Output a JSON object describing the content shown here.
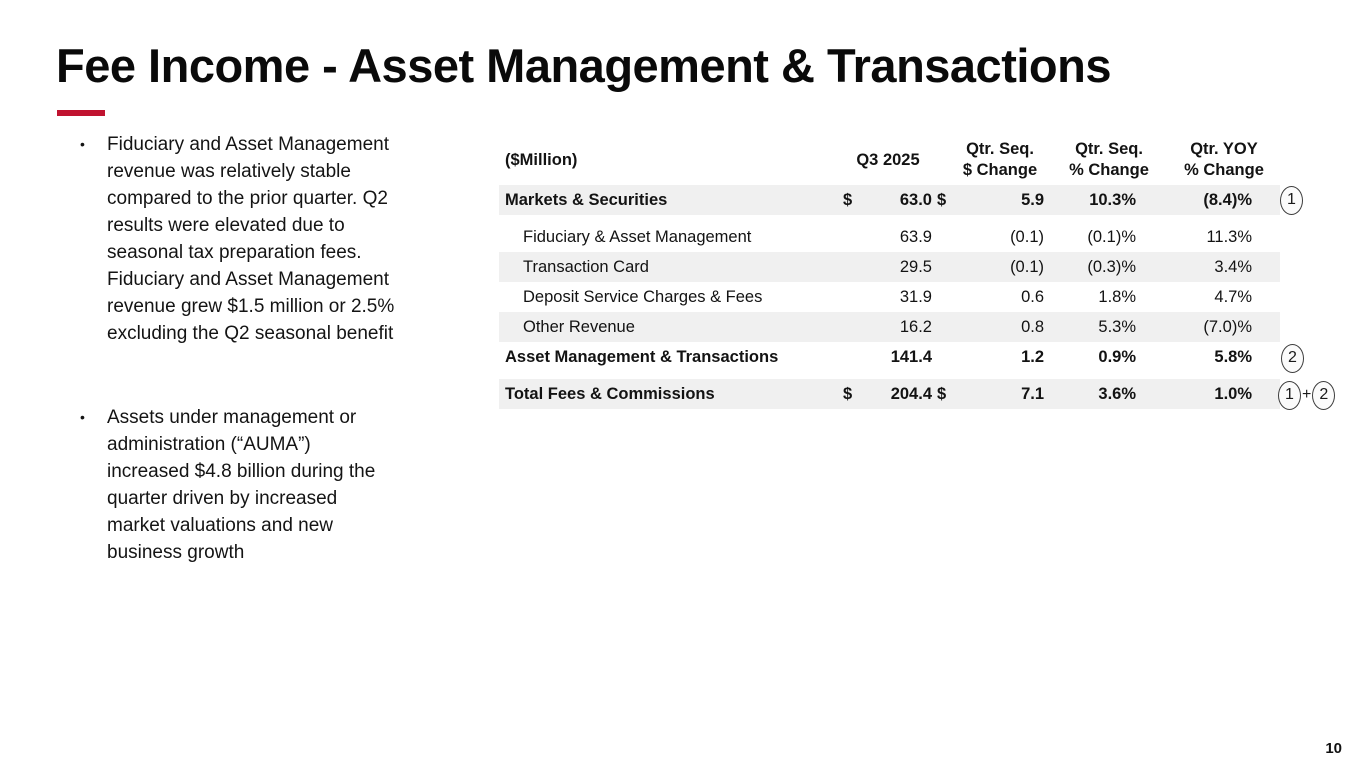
{
  "slide": {
    "title": "Fee Income - Asset Management & Transactions",
    "accent_color": "#c01330",
    "page_number": "10"
  },
  "bullets": [
    {
      "text": "Fiduciary and Asset Management\nrevenue was relatively stable\ncompared to the prior quarter. Q2\nresults were elevated due to\nseasonal tax preparation fees.\nFiduciary and Asset Management\nrevenue grew $1.5 million or 2.5%\nexcluding the Q2 seasonal benefit"
    },
    {
      "text": "Assets under management or\nadministration (“AUMA”)\nincreased $4.8 billion during the\nquarter driven by increased\nmarket valuations and new\nbusiness growth"
    }
  ],
  "table": {
    "unit_label": "($Million)",
    "headers": {
      "q3": "Q3 2025",
      "seq_dollar": "Qtr. Seq.\n$ Change",
      "seq_pct": "Qtr. Seq.\n% Change",
      "yoy_pct": "Qtr. YOY\n% Change"
    },
    "rows": [
      {
        "label": "Markets & Securities",
        "d1": "$",
        "q3": "63.0",
        "d2": "$",
        "chg": "5.9",
        "pct": "10.3%",
        "yoy": "(8.4)%"
      },
      {
        "label": "Fiduciary & Asset Management",
        "d1": "",
        "q3": "63.9",
        "d2": "",
        "chg": "(0.1)",
        "pct": "(0.1)%",
        "yoy": "11.3%"
      },
      {
        "label": "Transaction Card",
        "d1": "",
        "q3": "29.5",
        "d2": "",
        "chg": "(0.1)",
        "pct": "(0.3)%",
        "yoy": "3.4%"
      },
      {
        "label": "Deposit Service Charges & Fees",
        "d1": "",
        "q3": "31.9",
        "d2": "",
        "chg": "0.6",
        "pct": "1.8%",
        "yoy": "4.7%"
      },
      {
        "label": "Other Revenue",
        "d1": "",
        "q3": "16.2",
        "d2": "",
        "chg": "0.8",
        "pct": "5.3%",
        "yoy": "(7.0)%"
      },
      {
        "label": "Asset Management & Transactions",
        "d1": "",
        "q3": "141.4",
        "d2": "",
        "chg": "1.2",
        "pct": "0.9%",
        "yoy": "5.8%"
      },
      {
        "label": "Total Fees & Commissions",
        "d1": "$",
        "q3": "204.4",
        "d2": "$",
        "chg": "7.1",
        "pct": "3.6%",
        "yoy": "1.0%"
      }
    ]
  },
  "annotations": {
    "markets": "1",
    "asset_mgmt": "2",
    "total_left": "1",
    "total_plus": "+",
    "total_right": "2"
  },
  "chart_data": {
    "type": "table",
    "title": "Fee Income - Asset Management & Transactions ($Million)",
    "columns": [
      "Q3 2025",
      "Qtr. Seq. $ Change",
      "Qtr. Seq. % Change",
      "Qtr. YOY % Change"
    ],
    "rows": [
      {
        "label": "Markets & Securities",
        "q3_2025": 63.0,
        "seq_dollar_change": 5.9,
        "seq_pct_change": 10.3,
        "yoy_pct_change": -8.4
      },
      {
        "label": "Fiduciary & Asset Management",
        "q3_2025": 63.9,
        "seq_dollar_change": -0.1,
        "seq_pct_change": -0.1,
        "yoy_pct_change": 11.3
      },
      {
        "label": "Transaction Card",
        "q3_2025": 29.5,
        "seq_dollar_change": -0.1,
        "seq_pct_change": -0.3,
        "yoy_pct_change": 3.4
      },
      {
        "label": "Deposit Service Charges & Fees",
        "q3_2025": 31.9,
        "seq_dollar_change": 0.6,
        "seq_pct_change": 1.8,
        "yoy_pct_change": 4.7
      },
      {
        "label": "Other Revenue",
        "q3_2025": 16.2,
        "seq_dollar_change": 0.8,
        "seq_pct_change": 5.3,
        "yoy_pct_change": -7.0
      },
      {
        "label": "Asset Management & Transactions",
        "q3_2025": 141.4,
        "seq_dollar_change": 1.2,
        "seq_pct_change": 0.9,
        "yoy_pct_change": 5.8
      },
      {
        "label": "Total Fees & Commissions",
        "q3_2025": 204.4,
        "seq_dollar_change": 7.1,
        "seq_pct_change": 3.6,
        "yoy_pct_change": 1.0
      }
    ]
  }
}
